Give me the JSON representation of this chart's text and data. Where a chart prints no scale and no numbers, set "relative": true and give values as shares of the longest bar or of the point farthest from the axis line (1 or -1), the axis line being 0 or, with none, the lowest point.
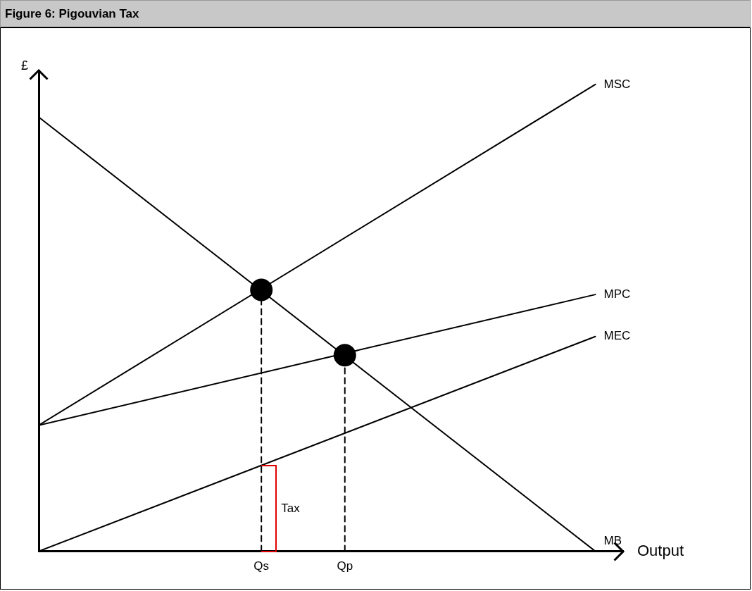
{
  "chart_data": {
    "type": "line",
    "title": "Figure 6: Pigouvian Tax",
    "xlabel": "Output",
    "ylabel": "£",
    "relative": true,
    "categories": [
      null,
      null,
      null,
      null,
      null,
      null,
      null,
      null,
      "Qs",
      null,
      null,
      "Qp",
      null,
      null,
      null,
      null,
      null,
      null,
      null,
      null,
      null,
      null
    ],
    "grid": false,
    "legend": false,
    "marker": "none",
    "annotations": [
      "Tax"
    ],
    "series": [
      {
        "name": "MSC",
        "color": "#000000",
        "values": [
          0.27,
          null,
          null,
          null,
          null,
          null,
          null,
          null,
          null,
          null,
          null,
          null,
          null,
          null,
          null,
          null,
          null,
          null,
          null,
          null,
          1,
          null
        ]
      },
      {
        "name": "MPC",
        "color": "#000000",
        "values": [
          0.27,
          null,
          null,
          null,
          null,
          null,
          null,
          null,
          null,
          null,
          null,
          null,
          null,
          null,
          null,
          null,
          null,
          null,
          null,
          null,
          0.55,
          null
        ]
      },
      {
        "name": "MEC",
        "color": "#000000",
        "values": [
          0,
          null,
          null,
          null,
          null,
          null,
          null,
          null,
          null,
          null,
          null,
          null,
          null,
          null,
          null,
          null,
          null,
          null,
          null,
          null,
          0.46,
          null
        ]
      },
      {
        "name": "MB",
        "color": "#000000",
        "values": [
          0.93,
          null,
          null,
          null,
          null,
          null,
          null,
          null,
          null,
          null,
          null,
          null,
          null,
          null,
          null,
          null,
          null,
          null,
          null,
          null,
          0,
          null
        ]
      },
      {
        "type": "scatter",
        "marker": "circle",
        "color": "#000000",
        "x": [
          "Qs",
          "Qp"
        ],
        "values": [
          0.56,
          0.42
        ]
      },
      {
        "line_style": "dashed",
        "color": "#000000",
        "x": [
          "Qs",
          "Qs"
        ],
        "values": [
          0,
          0.56
        ]
      },
      {
        "line_style": "dashed",
        "color": "#000000",
        "x": [
          "Qp",
          "Qp"
        ],
        "values": [
          0,
          0.42
        ]
      }
    ]
  }
}
